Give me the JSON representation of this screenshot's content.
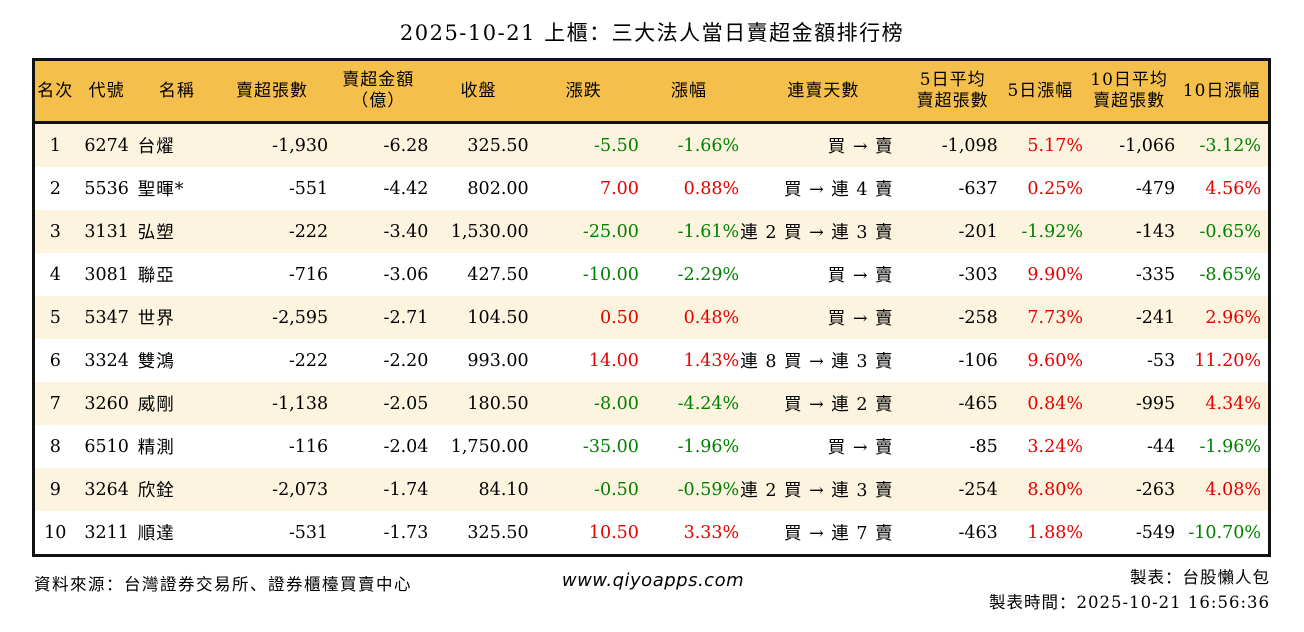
{
  "title": "2025-10-21 上櫃：三大法人當日賣超金額排行榜",
  "chart_data": {
    "type": "table",
    "columns": [
      "名次",
      "代號",
      "名稱",
      "賣超張數",
      "賣超金額\n（億）",
      "收盤",
      "漲跌",
      "漲幅",
      "連賣天數",
      "5日平均\n賣超張數",
      "5日漲幅",
      "10日平均\n賣超張數",
      "10日漲幅"
    ],
    "rows": [
      [
        "1",
        "6274",
        "台燿",
        "-1,930",
        "-6.28",
        "325.50",
        "-5.50",
        "-1.66%",
        "買 → 賣",
        "-1,098",
        "5.17%",
        "-1,066",
        "-3.12%"
      ],
      [
        "2",
        "5536",
        "聖暉*",
        "-551",
        "-4.42",
        "802.00",
        "7.00",
        "0.88%",
        "買 → 連 4 賣",
        "-637",
        "0.25%",
        "-479",
        "4.56%"
      ],
      [
        "3",
        "3131",
        "弘塑",
        "-222",
        "-3.40",
        "1,530.00",
        "-25.00",
        "-1.61%",
        "連 2 買 → 連 3 賣",
        "-201",
        "-1.92%",
        "-143",
        "-0.65%"
      ],
      [
        "4",
        "3081",
        "聯亞",
        "-716",
        "-3.06",
        "427.50",
        "-10.00",
        "-2.29%",
        "買 → 賣",
        "-303",
        "9.90%",
        "-335",
        "-8.65%"
      ],
      [
        "5",
        "5347",
        "世界",
        "-2,595",
        "-2.71",
        "104.50",
        "0.50",
        "0.48%",
        "買 → 賣",
        "-258",
        "7.73%",
        "-241",
        "2.96%"
      ],
      [
        "6",
        "3324",
        "雙鴻",
        "-222",
        "-2.20",
        "993.00",
        "14.00",
        "1.43%",
        "連 8 買 → 連 3 賣",
        "-106",
        "9.60%",
        "-53",
        "11.20%"
      ],
      [
        "7",
        "3260",
        "威剛",
        "-1,138",
        "-2.05",
        "180.50",
        "-8.00",
        "-4.24%",
        "買 → 連 2 賣",
        "-465",
        "0.84%",
        "-995",
        "4.34%"
      ],
      [
        "8",
        "6510",
        "精測",
        "-116",
        "-2.04",
        "1,750.00",
        "-35.00",
        "-1.96%",
        "買 → 賣",
        "-85",
        "3.24%",
        "-44",
        "-1.96%"
      ],
      [
        "9",
        "3264",
        "欣銓",
        "-2,073",
        "-1.74",
        "84.10",
        "-0.50",
        "-0.59%",
        "連 2 買 → 連 3 賣",
        "-254",
        "8.80%",
        "-263",
        "4.08%"
      ],
      [
        "10",
        "3211",
        "順達",
        "-531",
        "-1.73",
        "325.50",
        "10.50",
        "3.33%",
        "買 → 連 7 賣",
        "-463",
        "1.88%",
        "-549",
        "-10.70%"
      ]
    ]
  },
  "footer": {
    "source": "資料來源：台灣證券交易所、證券櫃檯買賣中心",
    "website": "www.qiyoapps.com",
    "maker": "製表：台股懶人包",
    "made_time": "製表時間：2025-10-21 16:56:36"
  },
  "colors": {
    "up_red": "#e60000",
    "down_green": "#008000",
    "header_bg": "#f5bf4b",
    "alt_row_bg": "#fcf4df",
    "border": "#111111"
  }
}
